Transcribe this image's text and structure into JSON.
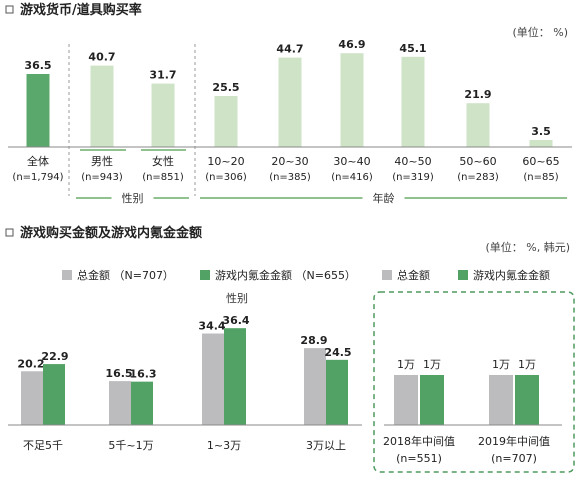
{
  "colors": {
    "dark_green": "#5aa86b",
    "light_green": "#cfe3c7",
    "gray": "#bcbcbe",
    "green": "#52a266",
    "divider_green": "#8fc28f",
    "dashed_green": "#4f9a5f"
  },
  "chart_data": [
    {
      "type": "bar",
      "title": "游戏货币/道具购买率",
      "unit_label": "(单位：  %)",
      "ylim": [
        0,
        50
      ],
      "grid": false,
      "categories": [
        {
          "label": "全体",
          "sub": "(n=1,794)",
          "value": 36.5,
          "highlight": true
        },
        {
          "label": "男性",
          "sub": "(n=943)",
          "value": 40.7,
          "highlight": false
        },
        {
          "label": "女性",
          "sub": "(n=851)",
          "value": 31.7,
          "highlight": false
        },
        {
          "label": "10~20",
          "sub": "(n=306)",
          "value": 25.5,
          "highlight": false
        },
        {
          "label": "20~30",
          "sub": "(n=385)",
          "value": 44.7,
          "highlight": false
        },
        {
          "label": "30~40",
          "sub": "(n=416)",
          "value": 46.9,
          "highlight": false
        },
        {
          "label": "40~50",
          "sub": "(n=319)",
          "value": 45.1,
          "highlight": false
        },
        {
          "label": "50~60",
          "sub": "(n=283)",
          "value": 21.9,
          "highlight": false
        },
        {
          "label": "60~65",
          "sub": "(n=85)",
          "value": 3.5,
          "highlight": false
        }
      ],
      "groups": [
        {
          "label": "性别",
          "from": 1,
          "to": 2
        },
        {
          "label": "年龄",
          "from": 3,
          "to": 8
        }
      ]
    },
    {
      "type": "bar",
      "title": "游戏购买金额及游戏内氪金金额",
      "unit_label": "(单位：  %,  韩元)",
      "ylim": [
        0,
        40
      ],
      "grid": false,
      "legend": [
        {
          "name": "总金额 （N=707）",
          "color": "gray"
        },
        {
          "name": "游戏内氪金金额 （N=655）",
          "color": "green"
        },
        {
          "name": "总金额",
          "color": "gray"
        },
        {
          "name": "游戏内氪金金额",
          "color": "green"
        }
      ],
      "floating_label": "性别",
      "categories": [
        "不足5千",
        "5千~1万",
        "1~3万",
        "3万以上"
      ],
      "series": [
        {
          "name": "总金额",
          "values": [
            20.2,
            16.5,
            34.4,
            28.9
          ]
        },
        {
          "name": "游戏内氪金金额",
          "values": [
            22.9,
            16.3,
            36.4,
            24.5
          ]
        }
      ],
      "median": {
        "groups": [
          {
            "label": "2018年中间值",
            "sub": "(n=551)",
            "gray_label": "1万",
            "green_label": "1万"
          },
          {
            "label": "2019年中间值",
            "sub": "(n=707)",
            "gray_label": "1万",
            "green_label": "1万"
          }
        ]
      }
    }
  ]
}
